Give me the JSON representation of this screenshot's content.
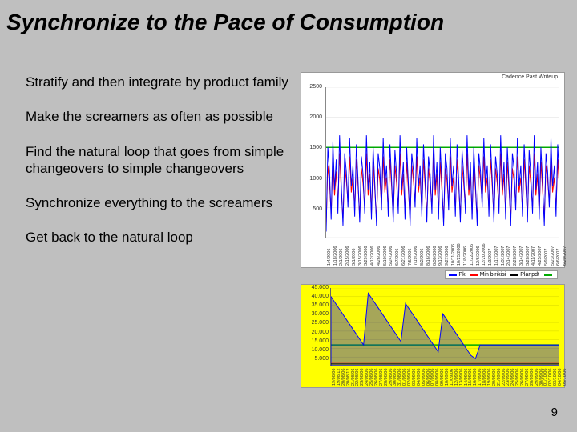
{
  "title": "Synchronize to the Pace of Consumption",
  "bullets": [
    "Stratify and then integrate by product family",
    "Make the screamers as often as possible",
    "Find the natural loop that goes from simple changeovers to simple changeovers",
    "Synchronize everything to the screamers",
    "Get back to the natural loop"
  ],
  "page_number": "9",
  "chart_top": {
    "type": "line",
    "title_text": "Cadence Past Writeup",
    "background": "#ffffff",
    "ylim": [
      0,
      2500
    ],
    "yticks": [
      0,
      500,
      1000,
      1500,
      2000,
      2500
    ],
    "ytick_labels": [
      "",
      "500",
      "1000",
      "1500",
      "2000",
      "2500"
    ],
    "hline": {
      "y": 1500,
      "color": "#00aa00",
      "width": 1.5
    },
    "series": [
      {
        "color": "#ff0000",
        "width": 1
      },
      {
        "color": "#0000ff",
        "width": 1
      }
    ],
    "xlabels": [
      "1/4/2006",
      "1/18/2006",
      "2/1/2006",
      "2/15/2006",
      "3/1/2006",
      "3/15/2006",
      "3/29/2006",
      "4/12/2006",
      "4/26/2006",
      "5/10/2006",
      "5/24/2006",
      "6/7/2006",
      "6/21/2006",
      "7/5/2006",
      "7/19/2006",
      "8/2/2006",
      "8/16/2006",
      "8/30/2006",
      "9/13/2006",
      "9/27/2006",
      "10/11/2006",
      "10/25/2006",
      "11/8/2006",
      "11/22/2006",
      "12/6/2006",
      "12/20/2006",
      "1/3/2007",
      "1/17/2007",
      "1/31/2007",
      "2/14/2007",
      "2/28/2007",
      "3/14/2007",
      "3/28/2007",
      "4/11/2007",
      "4/25/2007",
      "5/9/2007",
      "5/23/2007",
      "6/6/2007",
      "6/20/2007"
    ],
    "red_values": [
      200,
      1200,
      900,
      400,
      1300,
      700,
      1100,
      500,
      1400,
      800,
      300,
      1200,
      950,
      600,
      1350,
      750,
      1000,
      450,
      1300,
      850,
      350,
      1150,
      900,
      500,
      1400,
      700,
      1050,
      400,
      1250,
      800,
      300,
      1150,
      950,
      550,
      1350,
      750,
      1000,
      450,
      1300,
      850,
      350,
      1200,
      900,
      500,
      1400,
      700,
      1050,
      400,
      1250,
      800,
      300,
      1200,
      950,
      600,
      1350,
      750,
      1000,
      450,
      1300,
      850,
      350,
      1150,
      900,
      500,
      1400,
      700,
      1050,
      400,
      1250,
      800,
      300,
      1150,
      950,
      550,
      1350,
      750,
      1000,
      450,
      1300,
      850,
      350,
      1200,
      900,
      500,
      1400,
      700,
      1050,
      400,
      1250,
      800,
      300,
      1200,
      950,
      600,
      1350,
      750,
      1000,
      450,
      1300,
      850,
      350,
      1150,
      900,
      500,
      1400,
      700,
      1050,
      400,
      1250,
      800,
      300,
      1150,
      950,
      550,
      1350,
      750,
      1000,
      450,
      1300,
      850,
      350,
      1200,
      900,
      500,
      1400,
      700,
      1050,
      400,
      1250,
      800,
      300,
      1200,
      950,
      600,
      1350,
      750,
      1000,
      450,
      1300,
      850
    ],
    "blue_values": [
      100,
      1500,
      1100,
      300,
      1600,
      800,
      1300,
      400,
      1700,
      900,
      200,
      1400,
      1100,
      500,
      1650,
      850,
      1200,
      350,
      1550,
      950,
      250,
      1350,
      1050,
      400,
      1700,
      800,
      1250,
      300,
      1500,
      900,
      200,
      1400,
      1150,
      450,
      1650,
      850,
      1200,
      350,
      1550,
      950,
      250,
      1450,
      1050,
      400,
      1700,
      800,
      1250,
      300,
      1500,
      900,
      200,
      1400,
      1100,
      500,
      1650,
      850,
      1200,
      350,
      1550,
      950,
      250,
      1350,
      1050,
      400,
      1700,
      800,
      1250,
      300,
      1500,
      900,
      200,
      1400,
      1150,
      450,
      1650,
      850,
      1200,
      350,
      1550,
      950,
      250,
      1450,
      1050,
      400,
      1700,
      800,
      1250,
      300,
      1500,
      900,
      200,
      1400,
      1100,
      500,
      1650,
      850,
      1200,
      350,
      1550,
      950,
      250,
      1350,
      1050,
      400,
      1700,
      800,
      1250,
      300,
      1500,
      900,
      200,
      1400,
      1150,
      450,
      1650,
      850,
      1200,
      350,
      1550,
      950,
      250,
      1450,
      1050,
      400,
      1700,
      800,
      1250,
      300,
      1500,
      900,
      200,
      1400,
      1100,
      500,
      1650,
      850,
      1200,
      350,
      1550,
      950
    ]
  },
  "chart_bottom": {
    "type": "line",
    "background": "#ffff00",
    "ylim": [
      0,
      45000
    ],
    "yticks": [
      5000,
      10000,
      15000,
      20000,
      25000,
      30000,
      35000,
      40000,
      45000
    ],
    "ytick_labels": [
      "5.000",
      "10.000",
      "15.000",
      "20.000",
      "25.000",
      "30.000",
      "35.000",
      "40.000",
      "45.000"
    ],
    "legend": [
      {
        "label": "Pk",
        "color": "#0000ff"
      },
      {
        "label": "Min birikisi",
        "color": "#ff0000"
      },
      {
        "label": "Planpdt",
        "color": "#000000"
      },
      {
        "label": "",
        "color": "#00aa00"
      }
    ],
    "hline_green": {
      "y": 12000,
      "color": "#00aa00",
      "width": 1.5
    },
    "series_blue": [
      40000,
      36000,
      32000,
      28000,
      24000,
      20000,
      16000,
      12000,
      42000,
      38000,
      34000,
      30000,
      26000,
      22000,
      18000,
      14000,
      36000,
      32000,
      28000,
      24000,
      20000,
      16000,
      12000,
      8000,
      30000,
      26000,
      22000,
      18000,
      14000,
      10000,
      6000,
      4000,
      12000,
      12000,
      12000,
      12000,
      12000,
      12000,
      12000,
      12000,
      12000,
      12000,
      12000,
      12000,
      12000,
      12000,
      12000,
      12000,
      12000,
      12000
    ],
    "series_blue_color": "#0000ff",
    "series_red": [
      2000,
      2000,
      2000,
      2000,
      2000,
      2000,
      2000,
      2000,
      2000,
      2000,
      2000,
      2000,
      2000,
      2000,
      2000,
      2000,
      2000,
      2000,
      2000,
      2000,
      2000,
      2000,
      2000,
      2000,
      2000,
      2000,
      2000,
      2000,
      2000,
      2000,
      2000,
      2000,
      2000,
      2000,
      2000,
      2000,
      2000,
      2000,
      2000,
      2000,
      2000,
      2000,
      2000,
      2000,
      2000,
      2000,
      2000,
      2000,
      2000,
      2000
    ],
    "series_red_color": "#ff0000",
    "series_black": [
      1000,
      1000,
      1000,
      1000,
      1000,
      1000,
      1000,
      1000,
      1000,
      1000,
      1000,
      1000,
      1000,
      1000,
      1000,
      1000,
      1000,
      1000,
      1000,
      1000,
      1000,
      1000,
      1000,
      1000,
      1000,
      1000,
      1000,
      1000,
      1000,
      1000,
      1000,
      1000,
      1000,
      1000,
      1000,
      1000,
      1000,
      1000,
      1000,
      1000,
      1000,
      1000,
      1000,
      1000,
      1000,
      1000,
      1000,
      1000,
      1000,
      1000
    ],
    "series_black_color": "#000000",
    "xlabels": [
      "19/08/06",
      "19/08/12",
      "20/08/06",
      "20/08/12",
      "21/08/06",
      "22/08/06",
      "23/08/06",
      "24/08/06",
      "25/08/06",
      "26/08/06",
      "27/08/06",
      "28/08/06",
      "29/08/06",
      "30/08/06",
      "31/08/06",
      "01/09/06",
      "02/09/06",
      "03/09/06",
      "04/09/06",
      "05/09/06",
      "06/09/06",
      "07/09/06",
      "08/09/06",
      "09/09/06",
      "10/09/06",
      "11/09/06",
      "12/09/06",
      "13/09/06",
      "14/09/06",
      "15/09/06",
      "16/09/06",
      "17/09/06",
      "18/09/06",
      "19/09/06",
      "20/09/06",
      "21/09/06",
      "22/09/06",
      "23/09/06",
      "24/09/06",
      "25/09/06",
      "26/09/06",
      "27/09/06",
      "28/09/06",
      "29/09/06",
      "30/09/06",
      "01/10/06",
      "02/10/06",
      "03/10/06",
      "04/10/06",
      "05/10/06"
    ]
  }
}
